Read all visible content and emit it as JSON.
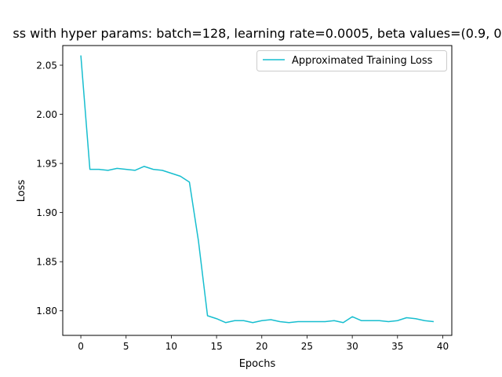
{
  "chart_data": {
    "type": "line",
    "title": "ss with hyper params: batch=128, learning rate=0.0005, beta values=(0.9, 0",
    "xlabel": "Epochs",
    "ylabel": "Loss",
    "xlim": [
      -2,
      41
    ],
    "ylim": [
      1.775,
      2.07
    ],
    "xticks": [
      0,
      5,
      10,
      15,
      20,
      25,
      30,
      35,
      40
    ],
    "xtick_labels": [
      "0",
      "5",
      "10",
      "15",
      "20",
      "25",
      "30",
      "35",
      "40"
    ],
    "yticks": [
      1.8,
      1.85,
      1.9,
      1.95,
      2.0,
      2.05
    ],
    "ytick_labels": [
      "1.80",
      "1.85",
      "1.90",
      "1.95",
      "2.00",
      "2.05"
    ],
    "grid": false,
    "legend_position": "top-right",
    "series": [
      {
        "name": "Approximated Training Loss",
        "color": "#17becf",
        "x": [
          0,
          1,
          2,
          3,
          4,
          5,
          6,
          7,
          8,
          9,
          10,
          11,
          12,
          13,
          14,
          15,
          16,
          17,
          18,
          19,
          20,
          21,
          22,
          23,
          24,
          25,
          26,
          27,
          28,
          29,
          30,
          31,
          32,
          33,
          34,
          35,
          36,
          37,
          38,
          39
        ],
        "y": [
          2.06,
          1.944,
          1.944,
          1.943,
          1.945,
          1.944,
          1.943,
          1.947,
          1.944,
          1.943,
          1.94,
          1.937,
          1.931,
          1.871,
          1.795,
          1.792,
          1.788,
          1.79,
          1.79,
          1.788,
          1.79,
          1.791,
          1.789,
          1.788,
          1.789,
          1.789,
          1.789,
          1.789,
          1.79,
          1.788,
          1.794,
          1.79,
          1.79,
          1.79,
          1.789,
          1.79,
          1.793,
          1.792,
          1.79,
          1.789
        ]
      }
    ]
  }
}
